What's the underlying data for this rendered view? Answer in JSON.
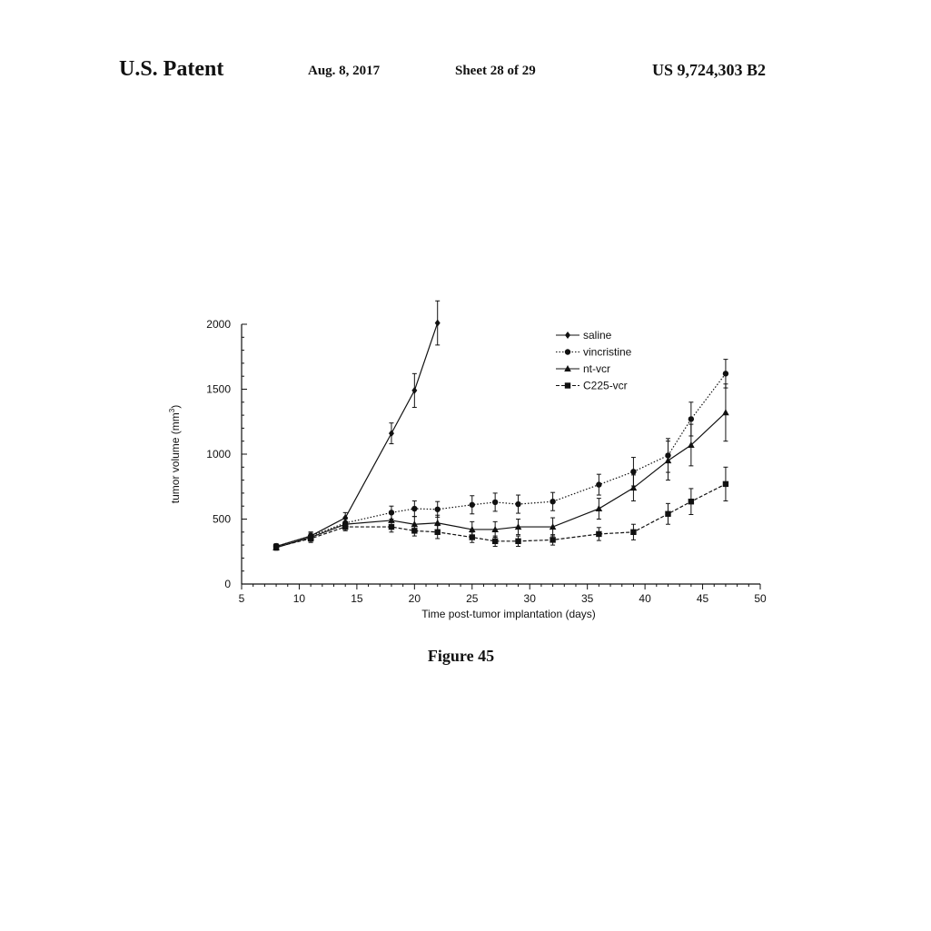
{
  "header": {
    "patent_label": "U.S. Patent",
    "date": "Aug. 8, 2017",
    "sheet": "Sheet 28 of 29",
    "patent_number": "US 9,724,303 B2"
  },
  "caption": "Figure 45",
  "chart_data": {
    "type": "line",
    "xlabel": "Time post-tumor implantation (days)",
    "ylabel_text": "tumor volume (mm",
    "ylabel_sup": "3",
    "ylabel_close": ")",
    "xlim": [
      5,
      50
    ],
    "ylim": [
      0,
      2000
    ],
    "x_ticks": [
      "5",
      "10",
      "15",
      "20",
      "25",
      "30",
      "35",
      "40",
      "45",
      "50"
    ],
    "y_ticks": [
      "0",
      "500",
      "1000",
      "1500",
      "2000"
    ],
    "grid": false,
    "legend_position": "top-right",
    "series": [
      {
        "name": "saline",
        "marker": "diamond",
        "dash": "solid",
        "x": [
          8,
          11,
          14,
          18,
          20,
          22
        ],
        "y": [
          290,
          370,
          510,
          1160,
          1490,
          2010
        ],
        "err": [
          20,
          30,
          40,
          80,
          130,
          170
        ]
      },
      {
        "name": "vincristine",
        "marker": "circle",
        "dash": "dotted",
        "x": [
          8,
          11,
          14,
          18,
          20,
          22,
          25,
          27,
          29,
          32,
          36,
          39,
          42,
          44,
          47
        ],
        "y": [
          290,
          370,
          470,
          550,
          580,
          575,
          610,
          630,
          615,
          635,
          765,
          865,
          990,
          1270,
          1620
        ],
        "err": [
          20,
          30,
          40,
          50,
          60,
          60,
          70,
          70,
          70,
          70,
          80,
          110,
          130,
          130,
          110
        ]
      },
      {
        "name": "nt-vcr",
        "marker": "triangle",
        "dash": "solid",
        "x": [
          8,
          11,
          14,
          18,
          20,
          22,
          25,
          27,
          29,
          32,
          36,
          39,
          42,
          44,
          47
        ],
        "y": [
          280,
          360,
          460,
          490,
          460,
          470,
          420,
          420,
          440,
          440,
          580,
          740,
          950,
          1070,
          1320
        ],
        "err": [
          20,
          30,
          40,
          50,
          60,
          60,
          60,
          60,
          60,
          70,
          80,
          100,
          150,
          160,
          220
        ]
      },
      {
        "name": "C225-vcr",
        "marker": "square",
        "dash": "dashed",
        "x": [
          8,
          11,
          14,
          18,
          20,
          22,
          25,
          27,
          29,
          32,
          36,
          39,
          42,
          44,
          47
        ],
        "y": [
          285,
          350,
          440,
          440,
          410,
          400,
          360,
          330,
          330,
          340,
          385,
          400,
          540,
          635,
          770
        ],
        "err": [
          20,
          30,
          30,
          40,
          40,
          50,
          40,
          40,
          40,
          40,
          50,
          60,
          80,
          100,
          130
        ]
      }
    ]
  }
}
